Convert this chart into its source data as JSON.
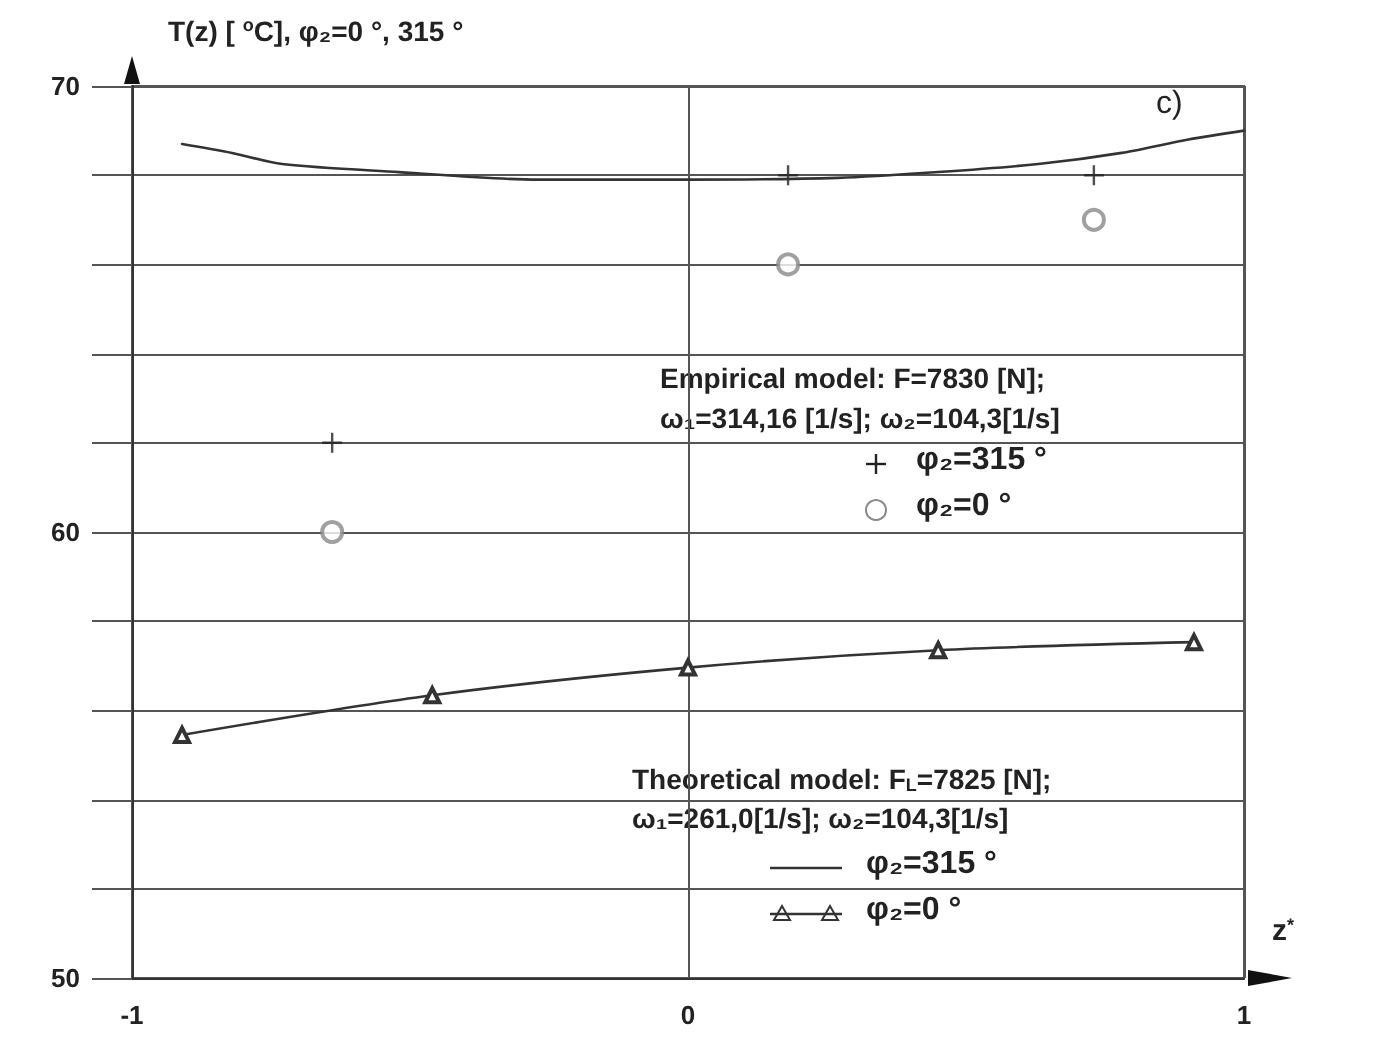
{
  "chart_data": {
    "type": "line",
    "ylabel": "T(z) [ $^{o}$C], φ₂=0 °, 315 °",
    "xlabel": "z$^{*}$",
    "annotations": [
      "c)",
      "Empirical model: F=7830 [N];",
      "ω₁=314,16 [1/s]; ω₂=104,3[1/s]",
      "Theoretical model: F$_{L}$=7825 [N];",
      "ω₁=261,0[1/s]; ω₂=104,3[1/s]"
    ],
    "xlim": [
      -1,
      1
    ],
    "xticks": [
      -1,
      0,
      1
    ],
    "ylim": [
      50,
      70
    ],
    "yticks": [
      50,
      {
        "value": 52,
        "label": null
      },
      {
        "value": 54,
        "label": null
      },
      {
        "value": 56,
        "label": null
      },
      {
        "value": 58,
        "label": null
      },
      60,
      {
        "value": 62,
        "label": null
      },
      {
        "value": 64,
        "label": null
      },
      {
        "value": 66,
        "label": null
      },
      {
        "value": 68,
        "label": null
      },
      70
    ],
    "grid": true,
    "legend": "right",
    "series": [
      {
        "name": "φ₂=315 °",
        "type": "scatter",
        "marker": "cross",
        "color": "#222222",
        "x": [
          -0.64,
          0.18,
          0.73
        ],
        "values": [
          62.0,
          68.0,
          68.0
        ]
      },
      {
        "name": "φ₂=0 °",
        "type": "scatter",
        "marker": "circle",
        "color": "#888888",
        "x": [
          -0.64,
          0.18,
          0.73
        ],
        "values": [
          60.0,
          66.0,
          67.0
        ]
      },
      {
        "name": "φ₂=315 °",
        "marker": "none",
        "color": "#333333",
        "x": [
          -0.91,
          -0.82,
          -0.73,
          -0.52,
          -0.27,
          0,
          0.27,
          0.45,
          0.63,
          0.78,
          0.9,
          1.0
        ],
        "values": [
          68.7,
          68.5,
          68.25,
          68.07,
          67.9,
          67.9,
          67.94,
          68.07,
          68.25,
          68.5,
          68.8,
          69.0
        ]
      },
      {
        "name": "φ₂=0 °",
        "marker": "triangle",
        "color": "#333333",
        "x": [
          -0.91,
          -0.46,
          0,
          0.45,
          0.91
        ],
        "values": [
          55.45,
          56.34,
          56.96,
          57.35,
          57.53
        ]
      }
    ]
  }
}
